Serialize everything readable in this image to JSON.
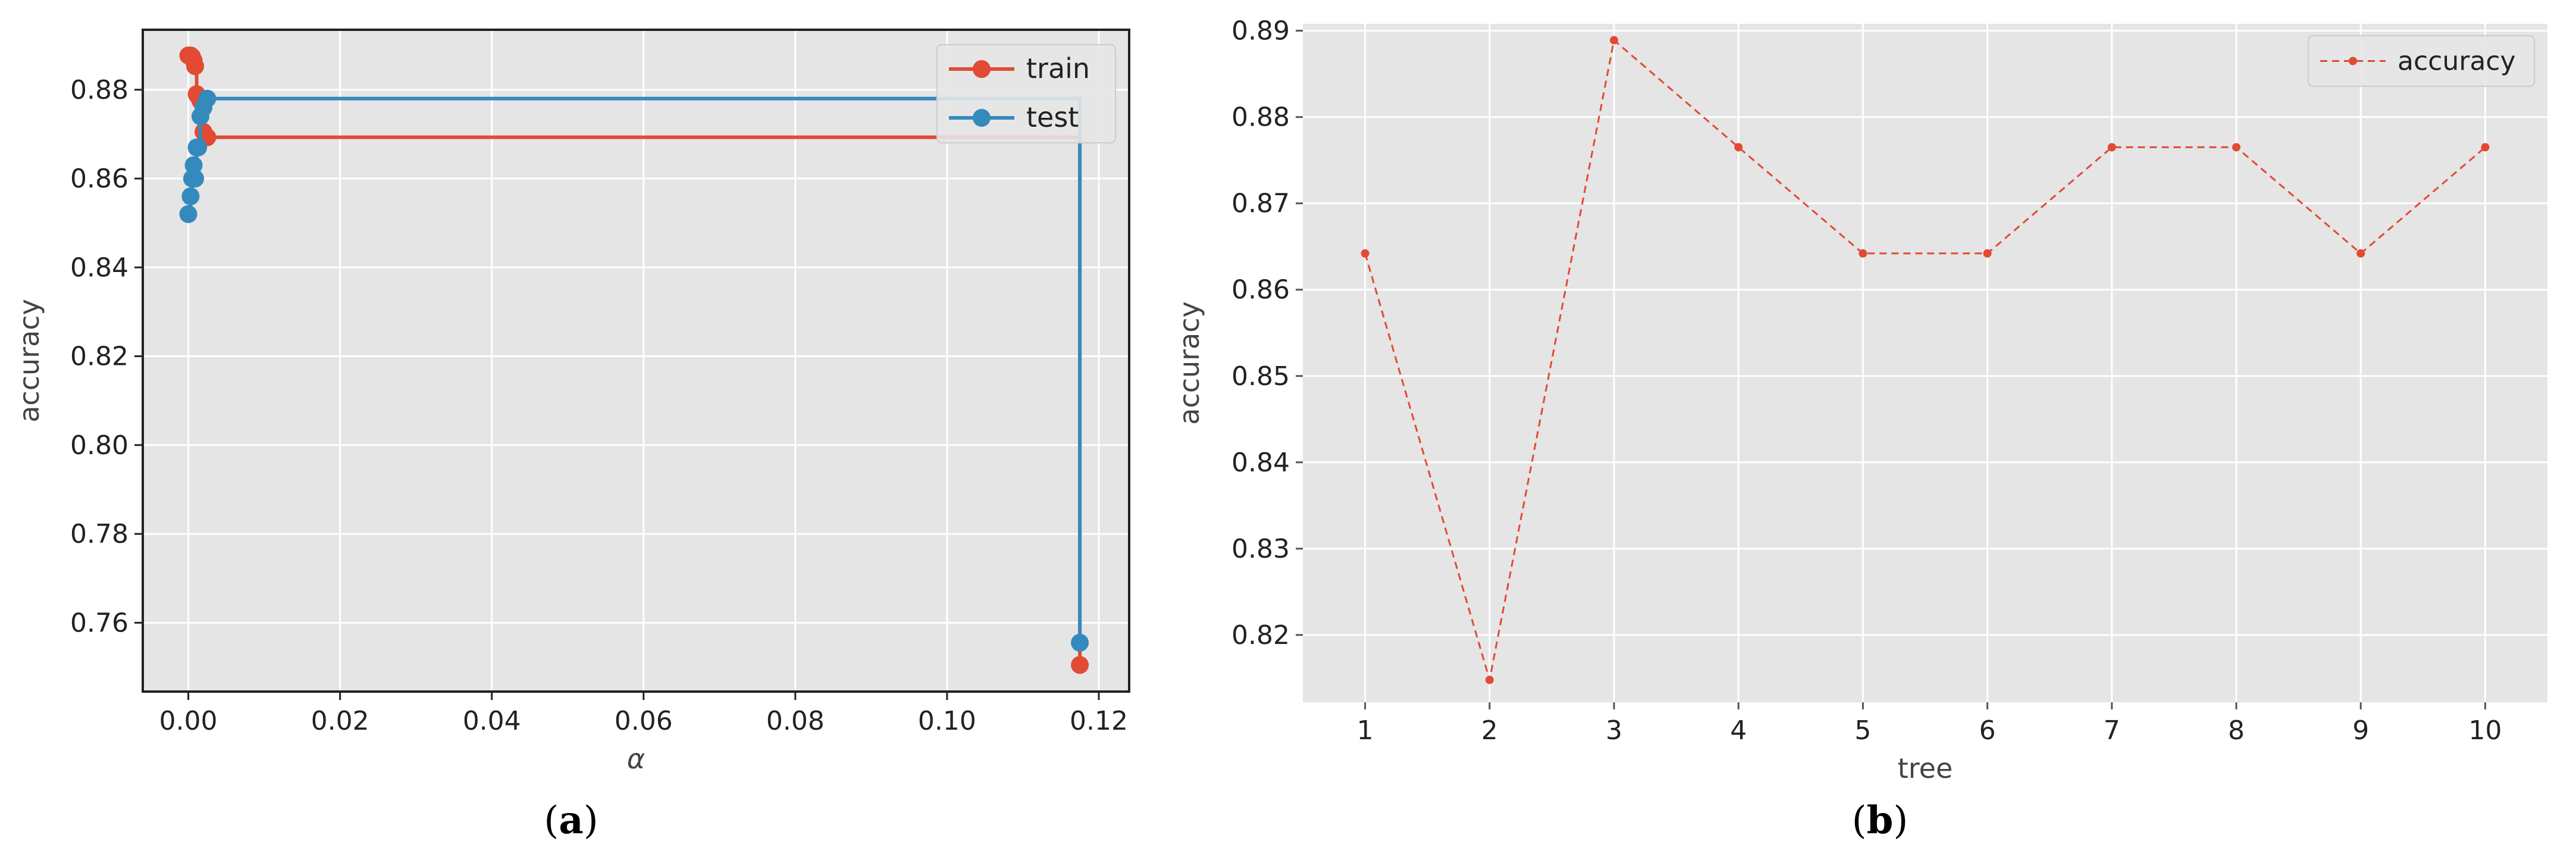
{
  "chart_data": [
    {
      "type": "line",
      "panel_label": "a",
      "xlabel": "α",
      "ylabel": "accuracy",
      "xlim": [
        -0.006,
        0.124
      ],
      "ylim": [
        0.7445,
        0.8935
      ],
      "xticks": [
        0.0,
        0.02,
        0.04,
        0.06,
        0.08,
        0.1,
        0.12
      ],
      "xtick_labels": [
        "0.00",
        "0.02",
        "0.04",
        "0.06",
        "0.08",
        "0.10",
        "0.12"
      ],
      "yticks": [
        0.76,
        0.78,
        0.8,
        0.82,
        0.84,
        0.86,
        0.88
      ],
      "ytick_labels": [
        "0.76",
        "0.78",
        "0.80",
        "0.82",
        "0.84",
        "0.86",
        "0.88"
      ],
      "grid": true,
      "legend_position": "top-right",
      "drawstyle": "steps-post",
      "series": [
        {
          "name": "train",
          "color": "#E24A33",
          "x": [
            0.0,
            0.0003,
            0.0005,
            0.0007,
            0.0009,
            0.0011,
            0.0013,
            0.0016,
            0.002,
            0.0025,
            0.1175
          ],
          "y": [
            0.8877,
            0.8877,
            0.8874,
            0.8866,
            0.8853,
            0.879,
            0.8785,
            0.8775,
            0.8705,
            0.8693,
            0.7505
          ]
        },
        {
          "name": "test",
          "color": "#348ABD",
          "x": [
            0.0,
            0.0003,
            0.0005,
            0.0007,
            0.0009,
            0.0011,
            0.0013,
            0.0016,
            0.002,
            0.0025,
            0.1175
          ],
          "y": [
            0.852,
            0.856,
            0.86,
            0.863,
            0.86,
            0.867,
            0.867,
            0.874,
            0.876,
            0.878,
            0.7555
          ]
        }
      ]
    },
    {
      "type": "line",
      "panel_label": "b",
      "xlabel": "tree",
      "ylabel": "accuracy",
      "xlim": [
        0.5,
        10.5
      ],
      "ylim": [
        0.8122,
        0.8908
      ],
      "xticks": [
        1,
        2,
        3,
        4,
        5,
        6,
        7,
        8,
        9,
        10
      ],
      "xtick_labels": [
        "1",
        "2",
        "3",
        "4",
        "5",
        "6",
        "7",
        "8",
        "9",
        "10"
      ],
      "yticks": [
        0.82,
        0.83,
        0.84,
        0.85,
        0.86,
        0.87,
        0.88,
        0.89
      ],
      "ytick_labels": [
        "0.82",
        "0.83",
        "0.84",
        "0.85",
        "0.86",
        "0.87",
        "0.88",
        "0.89"
      ],
      "grid": true,
      "legend_position": "top-right",
      "series": [
        {
          "name": "accuracy",
          "color": "#E24A33",
          "x": [
            1,
            2,
            3,
            4,
            5,
            6,
            7,
            8,
            9,
            10
          ],
          "y": [
            0.8642,
            0.8148,
            0.8889,
            0.8765,
            0.8642,
            0.8642,
            0.8765,
            0.8765,
            0.8642,
            0.8765
          ]
        }
      ]
    }
  ],
  "captions": {
    "a": {
      "open": "(",
      "label": "a",
      "close": ")"
    },
    "b": {
      "open": "(",
      "label": "b",
      "close": ")"
    }
  }
}
